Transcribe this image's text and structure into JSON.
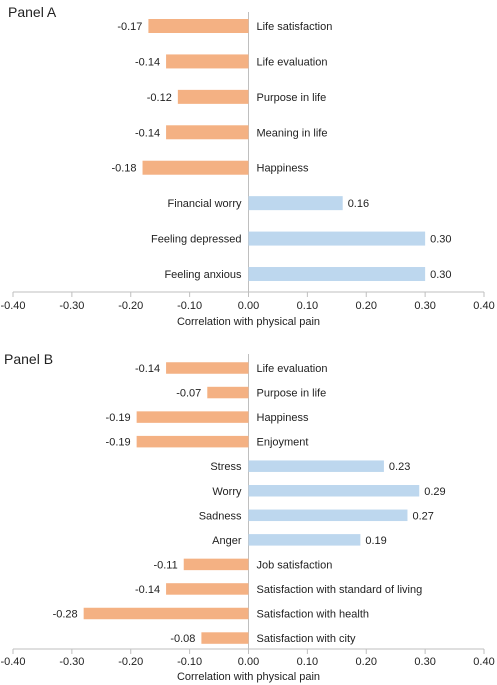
{
  "chart_data": [
    {
      "type": "bar",
      "orientation": "horizontal",
      "title": "Panel A",
      "xlabel": "Correlation with physical pain",
      "xlim": [
        -0.4,
        0.4
      ],
      "ticks": [
        "-0.40",
        "-0.30",
        "-0.20",
        "-0.10",
        "0.00",
        "0.10",
        "0.20",
        "0.30",
        "0.40"
      ],
      "categories": [
        "Life satisfaction",
        "Life evaluation",
        "Purpose in life",
        "Meaning in life",
        "Happiness",
        "Financial worry",
        "Feeling depressed",
        "Feeling anxious"
      ],
      "values": [
        -0.17,
        -0.14,
        -0.12,
        -0.14,
        -0.18,
        0.16,
        0.3,
        0.3
      ],
      "value_labels": [
        "-0.17",
        "-0.14",
        "-0.12",
        "-0.14",
        "-0.18",
        "0.16",
        "0.30",
        "0.30"
      ],
      "grid": false,
      "legend": "none"
    },
    {
      "type": "bar",
      "orientation": "horizontal",
      "title": "Panel B",
      "xlabel": "Correlation with physical pain",
      "xlim": [
        -0.4,
        0.4
      ],
      "ticks": [
        "-0.40",
        "-0.30",
        "-0.20",
        "-0.10",
        "0.00",
        "0.10",
        "0.20",
        "0.30",
        "0.40"
      ],
      "categories": [
        "Life evaluation",
        "Purpose in life",
        "Happiness",
        "Enjoyment",
        "Stress",
        "Worry",
        "Sadness",
        "Anger",
        "Job satisfaction",
        "Satisfaction with standard of living",
        "Satisfaction with health",
        "Satisfaction with city"
      ],
      "values": [
        -0.14,
        -0.07,
        -0.19,
        -0.19,
        0.23,
        0.29,
        0.27,
        0.19,
        -0.11,
        -0.14,
        -0.28,
        -0.08
      ],
      "value_labels": [
        "-0.14",
        "-0.07",
        "-0.19",
        "-0.19",
        "0.23",
        "0.29",
        "0.27",
        "0.19",
        "-0.11",
        "-0.14",
        "-0.28",
        "-0.08"
      ],
      "grid": false,
      "legend": "none"
    }
  ],
  "colors": {
    "negative_bar": "#f4b183",
    "positive_bar": "#bdd7ee",
    "axis": "#bfbfbf"
  }
}
